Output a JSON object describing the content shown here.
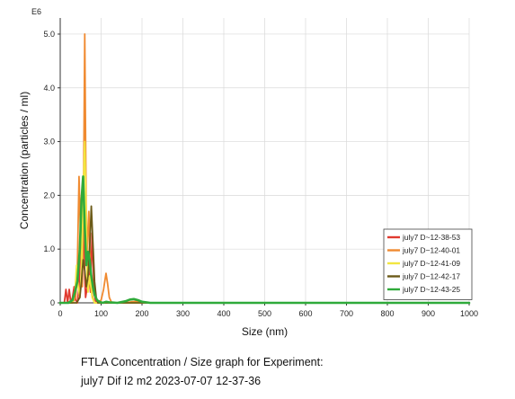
{
  "chart_data": {
    "type": "line",
    "title": "",
    "xlabel": "Size (nm)",
    "ylabel": "Concentration (particles / ml)",
    "y_multiplier_label": "E6",
    "xlim": [
      0,
      1000
    ],
    "ylim": [
      0,
      5.3
    ],
    "x_ticks": [
      0,
      100,
      200,
      300,
      400,
      500,
      600,
      700,
      800,
      900,
      1000
    ],
    "y_ticks": [
      0,
      1.0,
      2.0,
      3.0,
      4.0,
      5.0
    ],
    "y_tick_labels": [
      "0",
      "1.0",
      "2.0",
      "3.0",
      "4.0",
      "5.0"
    ],
    "legend_position": "right",
    "series": [
      {
        "name": "july7 D~12-38-53",
        "color": "#e03a2f",
        "x": [
          0,
          10,
          14,
          18,
          22,
          26,
          30,
          34,
          38,
          42,
          46,
          50,
          54,
          56,
          58,
          60,
          62,
          66,
          70,
          74,
          78,
          82,
          86,
          90,
          100,
          120,
          160,
          200,
          1000
        ],
        "y": [
          0,
          0,
          0.25,
          0,
          0.25,
          0,
          0.1,
          0.3,
          0.05,
          0,
          0.3,
          1.2,
          2.0,
          2.35,
          1.6,
          0.5,
          0.1,
          0.3,
          0.8,
          0.2,
          1.3,
          0.4,
          0.05,
          0,
          0,
          0,
          0,
          0,
          0
        ]
      },
      {
        "name": "july7 D~12-40-01",
        "color": "#f08a30",
        "x": [
          0,
          30,
          38,
          42,
          46,
          50,
          54,
          56,
          58,
          60,
          62,
          64,
          66,
          68,
          70,
          74,
          78,
          84,
          90,
          100,
          106,
          112,
          116,
          120,
          126,
          140,
          160,
          175,
          190,
          200,
          220,
          1000
        ],
        "y": [
          0,
          0,
          0.1,
          0.7,
          2.35,
          1.1,
          0.3,
          1.2,
          3.0,
          5.0,
          3.1,
          1.3,
          0.6,
          1.4,
          1.7,
          0.6,
          0.15,
          0,
          0,
          0.05,
          0.25,
          0.55,
          0.35,
          0.1,
          0,
          0,
          0,
          0.02,
          0.03,
          0.01,
          0,
          0
        ]
      },
      {
        "name": "july7 D~12-41-09",
        "color": "#f2e640",
        "x": [
          0,
          30,
          36,
          40,
          44,
          48,
          52,
          56,
          60,
          64,
          66,
          68,
          72,
          78,
          84,
          90,
          100,
          1000
        ],
        "y": [
          0,
          0,
          0.2,
          0.7,
          0.3,
          0.1,
          0.6,
          2.0,
          3.0,
          1.4,
          0.4,
          0.2,
          0.5,
          0.1,
          0,
          0,
          0,
          0
        ]
      },
      {
        "name": "july7 D~12-42-17",
        "color": "#6b5a18",
        "x": [
          0,
          40,
          48,
          52,
          56,
          60,
          64,
          68,
          72,
          76,
          80,
          84,
          88,
          92,
          100,
          1000
        ],
        "y": [
          0,
          0,
          0.1,
          0.4,
          0.8,
          0.6,
          0.3,
          0.5,
          1.0,
          1.8,
          1.1,
          0.4,
          0.1,
          0,
          0,
          0
        ]
      },
      {
        "name": "july7 D~12-43-25",
        "color": "#2faa3a",
        "x": [
          0,
          20,
          30,
          36,
          42,
          48,
          52,
          56,
          60,
          64,
          68,
          72,
          76,
          80,
          84,
          90,
          96,
          104,
          112,
          120,
          140,
          160,
          170,
          180,
          190,
          200,
          220,
          1000
        ],
        "y": [
          0,
          0,
          0.05,
          0.2,
          0.4,
          1.0,
          1.9,
          2.35,
          1.4,
          0.7,
          0.95,
          0.8,
          0.5,
          0.3,
          0.15,
          0.05,
          0.02,
          0,
          0.02,
          0.01,
          0,
          0.03,
          0.06,
          0.07,
          0.05,
          0.02,
          0,
          0
        ]
      }
    ]
  },
  "caption": {
    "line1": "FTLA Concentration / Size graph for Experiment:",
    "line2": "july7 Dif I2 m2 2023-07-07 12-37-36"
  }
}
